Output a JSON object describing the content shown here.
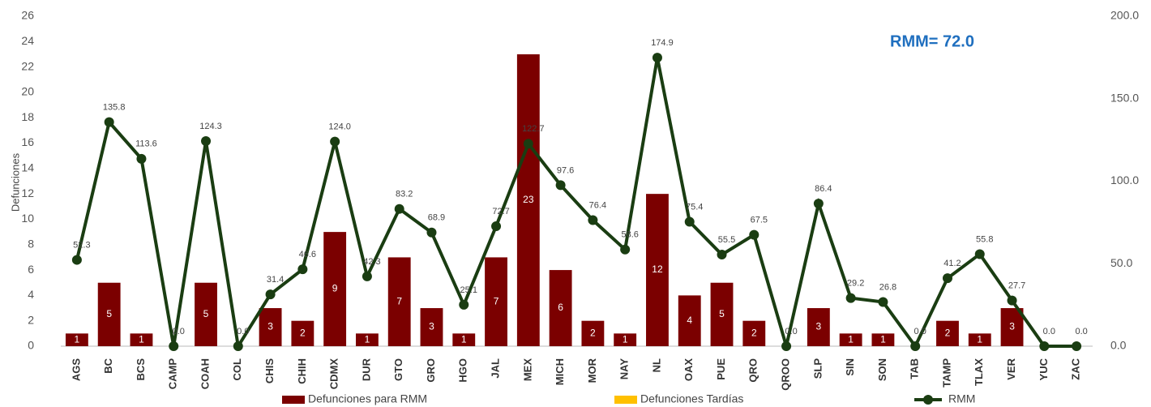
{
  "chart_data": {
    "type": "bar_line",
    "y_label": "Defunciones",
    "annotation": "RMM= 72.0",
    "categories": [
      "AGS",
      "BC",
      "BCS",
      "CAMP",
      "COAH",
      "COL",
      "CHIS",
      "CHIH",
      "CDMX",
      "DUR",
      "GTO",
      "GRO",
      "HGO",
      "JAL",
      "MEX",
      "MICH",
      "MOR",
      "NAY",
      "NL",
      "OAX",
      "PUE",
      "QRO",
      "QROO",
      "SLP",
      "SIN",
      "SON",
      "TAB",
      "TAMP",
      "TLAX",
      "VER",
      "YUC",
      "ZAC"
    ],
    "series": [
      {
        "name": "Defunciones para RMM",
        "type": "bar",
        "color": "#7b0000",
        "values": [
          1,
          5,
          1,
          0,
          5,
          0,
          3,
          2,
          9,
          1,
          7,
          3,
          1,
          7,
          23,
          6,
          2,
          1,
          12,
          4,
          5,
          2,
          0,
          3,
          1,
          1,
          0,
          2,
          1,
          3,
          0,
          0
        ]
      },
      {
        "name": "Defunciones Tardías",
        "type": "bar",
        "color": "#ffc000",
        "values": [
          0,
          0,
          0,
          0,
          0,
          0,
          0,
          0,
          0,
          0,
          0,
          0,
          0,
          0,
          0,
          0,
          0,
          0,
          0,
          0,
          0,
          0,
          0,
          0,
          0,
          0,
          0,
          0,
          0,
          0,
          0,
          0
        ]
      },
      {
        "name": "RMM",
        "type": "line",
        "axis": "y2",
        "color": "#1a3d12",
        "values": [
          52.3,
          135.8,
          113.6,
          0,
          124.3,
          0,
          31.4,
          46.6,
          124.0,
          42.3,
          83.2,
          68.9,
          25.1,
          72.7,
          122.7,
          97.6,
          76.4,
          58.6,
          174.9,
          75.4,
          55.5,
          67.5,
          0,
          86.4,
          29.2,
          26.8,
          0,
          41.2,
          55.8,
          27.7,
          0,
          0
        ],
        "value_labels": [
          "52.3",
          "135.8",
          "113.6",
          "0.0",
          "124.3",
          "0.0",
          "31.4",
          "46.6",
          "124.0",
          "42.3",
          "83.2",
          "68.9",
          "25.1",
          "72.7",
          "122.7",
          "97.6",
          "76.4",
          "58.6",
          "174.9",
          "75.4",
          "55.5",
          "67.5",
          "0.0",
          "86.4",
          "29.2",
          "26.8",
          "0.0",
          "41.2",
          "55.8",
          "27.7",
          "0.0",
          "0.0"
        ]
      }
    ],
    "ylim": [
      0,
      26
    ],
    "yticks": [
      0,
      2,
      4,
      6,
      8,
      10,
      12,
      14,
      16,
      18,
      20,
      22,
      24,
      26
    ],
    "y2lim": [
      0,
      200
    ],
    "y2ticks": [
      {
        "value": 0,
        "label": "0.0"
      },
      {
        "value": 50,
        "label": "50.0"
      },
      {
        "value": 100,
        "label": "100.0"
      },
      {
        "value": 150,
        "label": "150.0"
      },
      {
        "value": 200,
        "label": "200.0"
      }
    ],
    "legend": "bottom"
  }
}
